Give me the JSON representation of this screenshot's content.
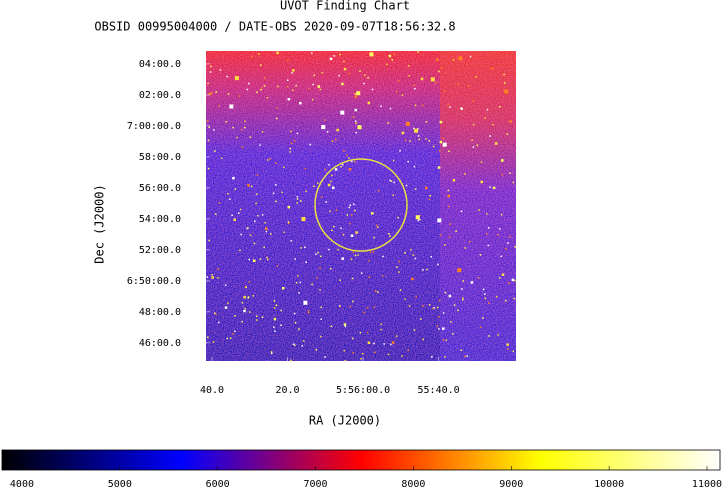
{
  "chart_data": {
    "type": "finding-chart",
    "title": "UVOT Finding Chart",
    "subtitle": "OBSID 00995004000 / DATE-OBS 2020-09-07T18:56:32.8",
    "x_label": "RA (J2000)",
    "y_label": "Dec (J2000)",
    "xlim": [
      21401.6,
      21319.5
    ],
    "xticks": [
      {
        "value": 21400,
        "label": "40.0"
      },
      {
        "value": 21380,
        "label": "20.0"
      },
      {
        "value": 21360,
        "label": "5:56:00.0"
      },
      {
        "value": 21340,
        "label": "55:40.0"
      }
    ],
    "ylim": [
      6.7472,
      7.0806
    ],
    "yticks": [
      {
        "value": 7.0667,
        "label": "04:00.0"
      },
      {
        "value": 7.0333,
        "label": "02:00.0"
      },
      {
        "value": 7.0,
        "label": "7:00:00.0"
      },
      {
        "value": 6.9667,
        "label": "58:00.0"
      },
      {
        "value": 6.9333,
        "label": "56:00.0"
      },
      {
        "value": 6.9,
        "label": "54:00.0"
      },
      {
        "value": 6.8667,
        "label": "52:00.0"
      },
      {
        "value": 6.8333,
        "label": "6:50:00.0"
      },
      {
        "value": 6.8,
        "label": "48:00.0"
      },
      {
        "value": 6.7667,
        "label": "46:00.0"
      }
    ],
    "clim": [
      3796,
      11133
    ],
    "cticks": [
      4000,
      5000,
      6000,
      7000,
      8000,
      9000,
      10000,
      11000
    ],
    "colormap": [
      "#000000",
      "#0000ff",
      "#ff0000",
      "#ffff00",
      "#ffffff"
    ]
  }
}
